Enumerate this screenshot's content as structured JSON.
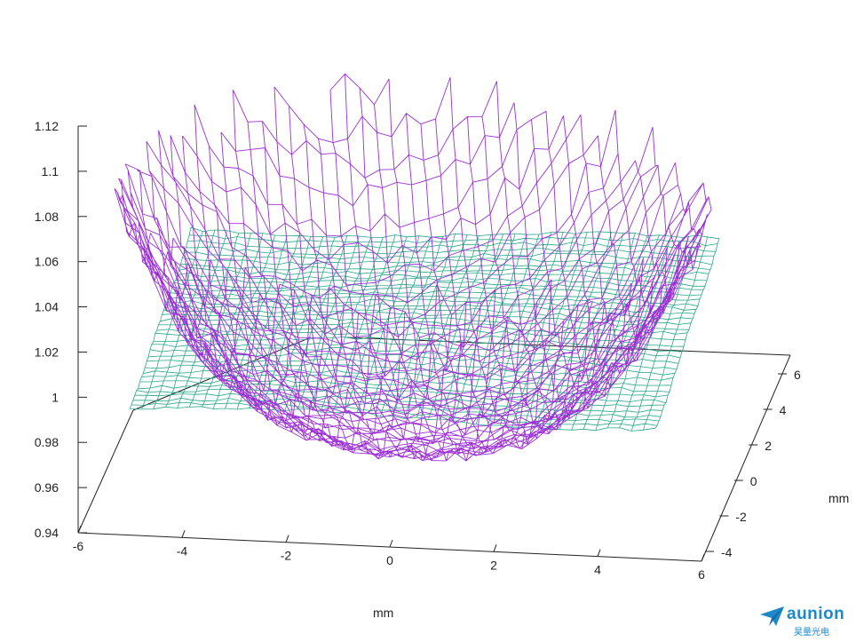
{
  "chart_data": {
    "type": "surface-3d",
    "title": "",
    "xlabel": "mm",
    "ylabel": "mm",
    "zlabel": "",
    "x_ticks": [
      "-6",
      "-4",
      "-2",
      "0",
      "2",
      "4",
      "6"
    ],
    "y_ticks": [
      "-4",
      "-2",
      "0",
      "2",
      "4",
      "6"
    ],
    "z_ticks": [
      "0.94",
      "0.96",
      "0.98",
      "1",
      "1.02",
      "1.04",
      "1.06",
      "1.08",
      "1.1",
      "1.12"
    ],
    "xlim": [
      -6,
      6
    ],
    "ylim": [
      -4,
      6
    ],
    "zlim": [
      0.94,
      1.12
    ],
    "grid": "off",
    "legend": "none",
    "series": [
      {
        "color": "#2aa68c",
        "description": "near-flat surface",
        "z_center": 1.0,
        "z_range": [
          0.99,
          1.07
        ]
      },
      {
        "color": "#9b2fd6",
        "description": "bowl-shaped surface",
        "z_min": 0.975,
        "z_max": 1.12
      }
    ]
  },
  "logo": {
    "brand": "aunion",
    "subtitle": "昊量光电"
  }
}
